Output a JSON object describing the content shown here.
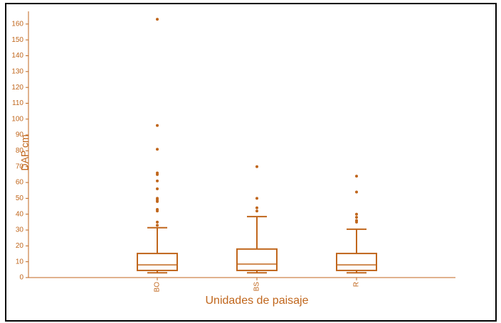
{
  "chart_data": {
    "type": "box",
    "x_label": "Unidades de paisaje",
    "y_label": "DAP cm",
    "categories": [
      "BO",
      "BS",
      "R"
    ],
    "color": "#c0661c",
    "ylim": [
      0,
      168
    ],
    "yticks": [
      0,
      10,
      20,
      30,
      40,
      50,
      60,
      70,
      80,
      90,
      100,
      110,
      120,
      130,
      140,
      150,
      160
    ],
    "boxes": [
      {
        "whisker_low": 3,
        "q1": 4.5,
        "median": 8,
        "q3": 15.2,
        "whisker_high": 31.5,
        "outliers": [
          163,
          96,
          81,
          66,
          65,
          61,
          56,
          50,
          49,
          48,
          43,
          42,
          35,
          33
        ]
      },
      {
        "whisker_low": 3,
        "q1": 4.5,
        "median": 8.5,
        "q3": 18,
        "whisker_high": 38.5,
        "outliers": [
          70,
          50,
          44,
          42
        ]
      },
      {
        "whisker_low": 3,
        "q1": 4.5,
        "median": 8,
        "q3": 15.2,
        "whisker_high": 30.5,
        "outliers": [
          64,
          54,
          40,
          38,
          36,
          35
        ]
      }
    ]
  }
}
